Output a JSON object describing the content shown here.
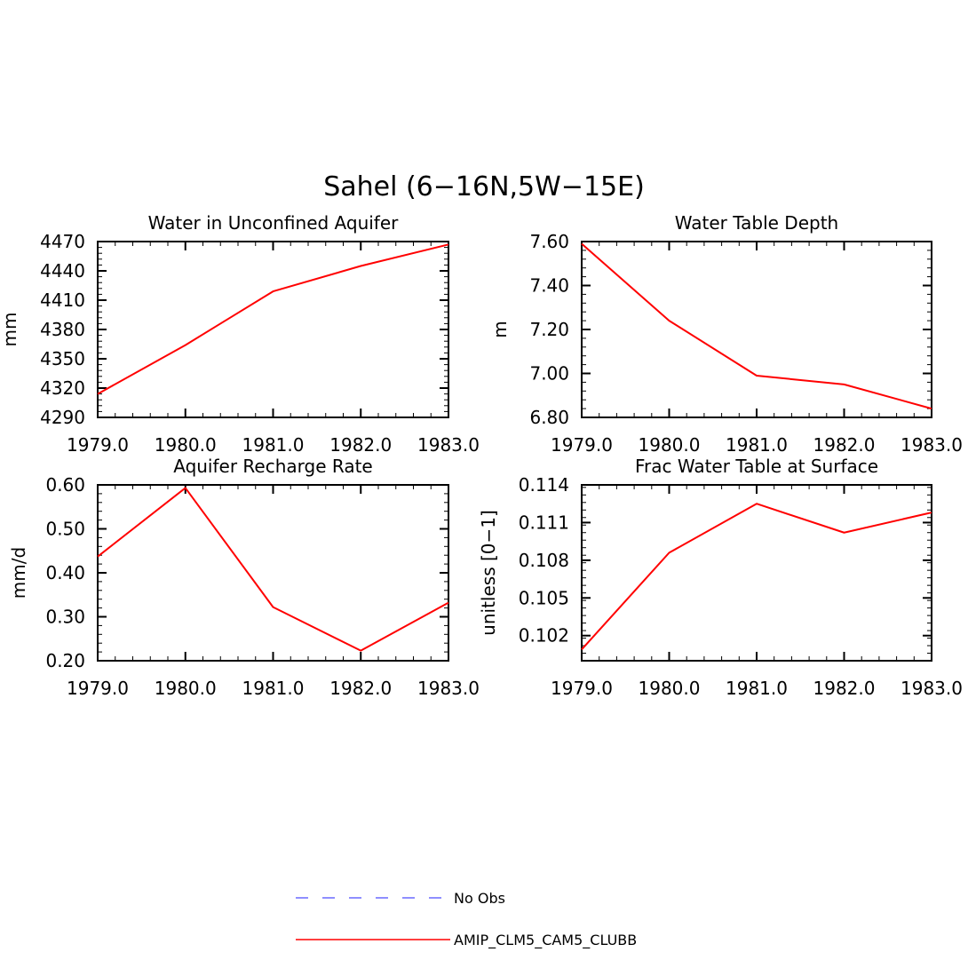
{
  "title": "Sahel (6−16N,5W−15E)",
  "chart_data": [
    {
      "type": "line",
      "title": "Water in Unconfined Aquifer",
      "xlabel": "",
      "ylabel": "mm",
      "x": [
        1979.0,
        1980.0,
        1981.0,
        1982.0,
        1983.0
      ],
      "xlim": [
        1979.0,
        1983.0
      ],
      "xticks": [
        "1979.0",
        "1980.0",
        "1981.0",
        "1982.0",
        "1983.0"
      ],
      "ylim": [
        4290,
        4470
      ],
      "yticks": [
        "4290",
        "4320",
        "4350",
        "4380",
        "4410",
        "4440",
        "4470"
      ],
      "series": [
        {
          "name": "AMIP_CLM5_CAM5_CLUBB",
          "color": "#ff0000",
          "values": [
            4314,
            4364,
            4419,
            4445,
            4467
          ]
        }
      ]
    },
    {
      "type": "line",
      "title": "Water Table Depth",
      "xlabel": "",
      "ylabel": "m",
      "x": [
        1979.0,
        1980.0,
        1981.0,
        1982.0,
        1983.0
      ],
      "xlim": [
        1979.0,
        1983.0
      ],
      "xticks": [
        "1979.0",
        "1980.0",
        "1981.0",
        "1982.0",
        "1983.0"
      ],
      "ylim": [
        6.8,
        7.6
      ],
      "yticks": [
        "6.80",
        "7.00",
        "7.20",
        "7.40",
        "7.60"
      ],
      "series": [
        {
          "name": "AMIP_CLM5_CAM5_CLUBB",
          "color": "#ff0000",
          "values": [
            7.59,
            7.24,
            6.99,
            6.95,
            6.84
          ]
        }
      ]
    },
    {
      "type": "line",
      "title": "Aquifer Recharge Rate",
      "xlabel": "",
      "ylabel": "mm/d",
      "x": [
        1979.0,
        1980.0,
        1981.0,
        1982.0,
        1983.0
      ],
      "xlim": [
        1979.0,
        1983.0
      ],
      "xticks": [
        "1979.0",
        "1980.0",
        "1981.0",
        "1982.0",
        "1983.0"
      ],
      "ylim": [
        0.2,
        0.6
      ],
      "yticks": [
        "0.20",
        "0.30",
        "0.40",
        "0.50",
        "0.60"
      ],
      "series": [
        {
          "name": "AMIP_CLM5_CAM5_CLUBB",
          "color": "#ff0000",
          "values": [
            0.437,
            0.593,
            0.322,
            0.223,
            0.332
          ]
        }
      ]
    },
    {
      "type": "line",
      "title": "Frac Water Table at Surface",
      "xlabel": "",
      "ylabel": "unitless [0−1]",
      "x": [
        1979.0,
        1980.0,
        1981.0,
        1982.0,
        1983.0
      ],
      "xlim": [
        1979.0,
        1983.0
      ],
      "xticks": [
        "1979.0",
        "1980.0",
        "1981.0",
        "1982.0",
        "1983.0"
      ],
      "ylim": [
        0.1,
        0.114
      ],
      "yticks": [
        "0.102",
        "0.105",
        "0.108",
        "0.111",
        "0.114"
      ],
      "series": [
        {
          "name": "AMIP_CLM5_CAM5_CLUBB",
          "color": "#ff0000",
          "values": [
            0.1009,
            0.1086,
            0.1125,
            0.1102,
            0.1118
          ]
        }
      ]
    }
  ],
  "legend": [
    {
      "label": "No Obs",
      "color": "#6a6aff",
      "style": "dashed"
    },
    {
      "label": "AMIP_CLM5_CAM5_CLUBB",
      "color": "#ff0000",
      "style": "solid"
    }
  ]
}
